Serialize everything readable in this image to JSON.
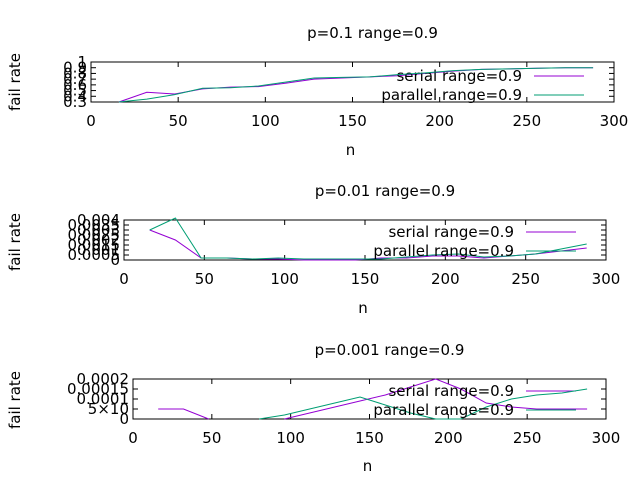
{
  "chart_data": [
    {
      "type": "line",
      "title": "p=0.1 range=0.9",
      "xlabel": "n",
      "ylabel": "fail rate",
      "xlim": [
        0,
        300
      ],
      "ylim": [
        0.3,
        1
      ],
      "xticks": [
        "0",
        "50",
        "100",
        "150",
        "200",
        "250",
        "300"
      ],
      "xtick_values": [
        0,
        50,
        100,
        150,
        200,
        250,
        300
      ],
      "yticks": [
        "0.3",
        "0.4",
        "0.5",
        "0.6",
        "0.7",
        "0.8",
        "0.9",
        "1"
      ],
      "ytick_values": [
        0.3,
        0.4,
        0.5,
        0.6,
        0.7,
        0.8,
        0.9,
        1
      ],
      "legend": "top-right",
      "x": [
        16,
        32,
        48,
        64,
        80,
        96,
        112,
        128,
        144,
        160,
        176,
        192,
        208,
        224,
        240,
        256,
        272,
        288
      ],
      "series": [
        {
          "name": "serial range=0.9",
          "color": "#9400d3",
          "values": [
            0.3,
            0.47,
            0.44,
            0.53,
            0.56,
            0.57,
            0.63,
            0.7,
            0.72,
            0.74,
            0.76,
            0.8,
            0.84,
            0.87,
            0.88,
            0.89,
            0.9,
            0.9
          ]
        },
        {
          "name": "parallel  range=0.9",
          "color": "#009e73",
          "values": [
            0.3,
            0.35,
            0.43,
            0.54,
            0.55,
            0.58,
            0.65,
            0.72,
            0.73,
            0.74,
            0.78,
            0.81,
            0.85,
            0.87,
            0.88,
            0.89,
            0.9,
            0.9
          ]
        }
      ]
    },
    {
      "type": "line",
      "title": "p=0.01 range=0.9",
      "xlabel": "n",
      "ylabel": "fail rate",
      "xlim": [
        0,
        300
      ],
      "ylim": [
        0,
        0.004
      ],
      "xticks": [
        "0",
        "50",
        "100",
        "150",
        "200",
        "250",
        "300"
      ],
      "xtick_values": [
        0,
        50,
        100,
        150,
        200,
        250,
        300
      ],
      "yticks": [
        "0",
        "0.0005",
        "0.001",
        "0.0015",
        "0.002",
        "0.0025",
        "0.003",
        "0.0035",
        "0.004"
      ],
      "ytick_values": [
        0,
        0.0005,
        0.001,
        0.0015,
        0.002,
        0.0025,
        0.003,
        0.0035,
        0.004
      ],
      "legend": "top-right",
      "x": [
        16,
        32,
        48,
        64,
        80,
        96,
        112,
        128,
        144,
        160,
        176,
        192,
        208,
        224,
        240,
        256,
        272,
        288
      ],
      "series": [
        {
          "name": "serial  range=0.9",
          "color": "#9400d3",
          "values": [
            0.003,
            0.002,
            0.0002,
            0.0002,
            0.0001,
            0.0001,
            0.0,
            0.0,
            0.0,
            0.0002,
            0.0002,
            0.0004,
            0.0004,
            0.0002,
            0.0004,
            0.0006,
            0.0009,
            0.0012
          ]
        },
        {
          "name": "parallel  range=0.9",
          "color": "#009e73",
          "values": [
            0.003,
            0.0042,
            0.0002,
            0.0002,
            0.0001,
            0.0002,
            0.0001,
            0.0001,
            0.0001,
            0.0001,
            0.0003,
            0.0005,
            0.0006,
            0.0003,
            0.0004,
            0.0006,
            0.0011,
            0.0016
          ]
        }
      ]
    },
    {
      "type": "line",
      "title": "p=0.001 range=0.9",
      "xlabel": "n",
      "ylabel": "fail rate",
      "xlim": [
        0,
        300
      ],
      "ylim": [
        0,
        0.0002
      ],
      "xticks": [
        "0",
        "50",
        "100",
        "150",
        "200",
        "250",
        "300"
      ],
      "xtick_values": [
        0,
        50,
        100,
        150,
        200,
        250,
        300
      ],
      "yticks": [
        "0",
        "5×10",
        "0.0001",
        "0.00015",
        "0.0002"
      ],
      "ytick_values": [
        0,
        5e-05,
        0.0001,
        0.00015,
        0.0002
      ],
      "legend": "top-right",
      "x": [
        16,
        32,
        48,
        64,
        80,
        96,
        112,
        128,
        144,
        160,
        176,
        192,
        208,
        224,
        240,
        256,
        272,
        288
      ],
      "series": [
        {
          "name": "serial  range=0.9",
          "color": "#9400d3",
          "values": [
            5e-05,
            5e-05,
            0.0,
            null,
            null,
            0.0,
            3e-05,
            6e-05,
            9e-05,
            0.00012,
            0.00016,
            0.0002,
            0.00015,
            8e-05,
            6e-05,
            5e-05,
            5e-05,
            5e-05
          ]
        },
        {
          "name": "parallel  range=0.9",
          "color": "#009e73",
          "values": [
            null,
            null,
            null,
            null,
            0.0,
            2e-05,
            5e-05,
            8e-05,
            0.00011,
            7e-05,
            3e-05,
            0.0,
            0.0,
            6e-05,
            0.0001,
            0.00012,
            0.00013,
            0.00015
          ]
        }
      ]
    }
  ]
}
